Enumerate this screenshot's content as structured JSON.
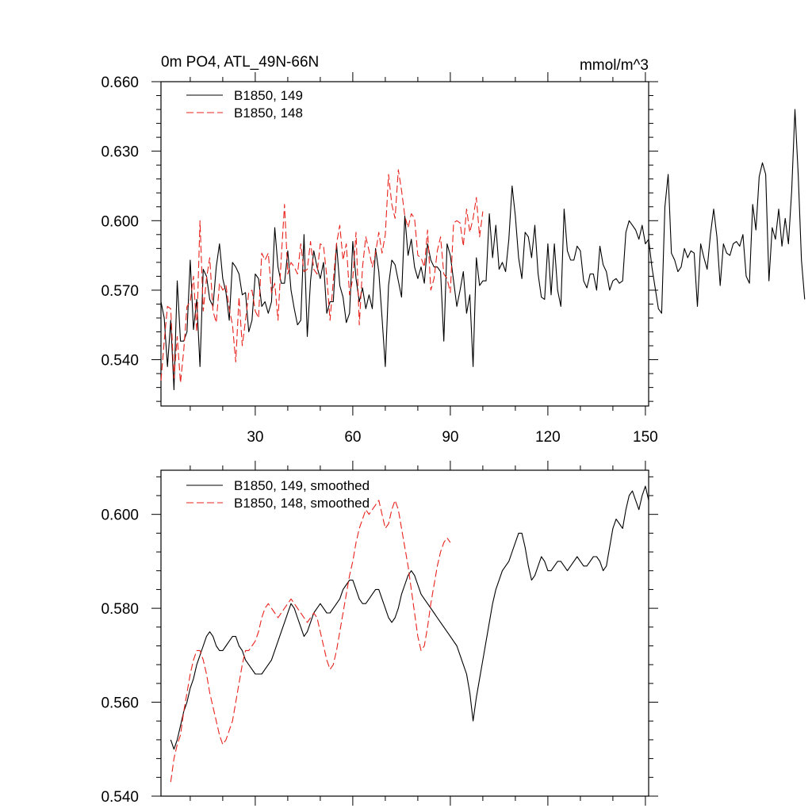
{
  "chart_data": [
    {
      "type": "line",
      "title": "0m PO4, ATL_49N-66N",
      "units": "mmol/m^3",
      "xlabel": "",
      "ylabel": "",
      "xlim": [
        1,
        151
      ],
      "ylim": [
        0.52,
        0.66
      ],
      "xticks": [
        30,
        60,
        90,
        120,
        150
      ],
      "yticks": [
        0.54,
        0.57,
        0.6,
        0.63,
        0.66
      ],
      "ytick_labels": [
        "0.540",
        "0.570",
        "0.600",
        "0.630",
        "0.660"
      ],
      "xtick_labels": [
        "30",
        "60",
        "90",
        "120",
        "150"
      ],
      "legend_position": "top-left",
      "series": [
        {
          "name": "B1850, 149",
          "color": "#000000",
          "dash": "solid",
          "x_start": 1,
          "values": [
            0.565,
            0.558,
            0.537,
            0.557,
            0.527,
            0.574,
            0.548,
            0.548,
            0.552,
            0.583,
            0.553,
            0.566,
            0.537,
            0.579,
            0.576,
            0.566,
            0.563,
            0.58,
            0.59,
            0.575,
            0.569,
            0.557,
            0.582,
            0.58,
            0.577,
            0.568,
            0.569,
            0.552,
            0.557,
            0.577,
            0.575,
            0.563,
            0.565,
            0.56,
            0.565,
            0.597,
            0.58,
            0.573,
            0.573,
            0.587,
            0.57,
            0.562,
            0.555,
            0.557,
            0.594,
            0.55,
            0.574,
            0.587,
            0.58,
            0.575,
            0.582,
            0.56,
            0.565,
            0.565,
            0.59,
            0.572,
            0.567,
            0.556,
            0.56,
            0.591,
            0.575,
            0.565,
            0.571,
            0.562,
            0.568,
            0.562,
            0.588,
            0.578,
            0.558,
            0.537,
            0.572,
            0.583,
            0.581,
            0.574,
            0.567,
            0.602,
            0.585,
            0.592,
            0.58,
            0.575,
            0.58,
            0.573,
            0.59,
            0.583,
            0.58,
            0.58,
            0.578,
            0.548,
            0.59,
            0.585,
            0.574,
            0.563,
            0.57,
            0.578,
            0.56,
            0.568,
            0.537,
            0.584,
            0.572,
            0.574,
            0.574,
            0.603,
            0.584,
            0.598,
            0.579,
            0.582,
            0.578,
            0.592,
            0.615,
            0.602,
            0.584,
            0.575,
            0.595,
            0.593,
            0.584,
            0.598,
            0.577,
            0.567,
            0.566,
            0.59,
            0.568,
            0.59,
            0.57,
            0.563,
            0.605,
            0.587,
            0.583,
            0.583,
            0.589,
            0.587,
            0.574,
            0.571,
            0.577,
            0.577,
            0.57,
            0.589,
            0.581,
            0.578,
            0.57,
            0.574,
            0.575,
            0.573,
            0.574,
            0.595,
            0.6,
            0.598,
            0.596,
            0.592,
            0.598,
            0.59,
            0.592,
            0.58,
            0.571,
            0.562,
            0.56,
            0.606,
            0.62,
            0.586,
            0.583,
            0.578,
            0.58,
            0.588,
            0.584,
            0.587,
            0.586,
            0.563,
            0.59,
            0.584,
            0.579,
            0.594,
            0.605,
            0.593,
            0.572,
            0.59,
            0.586,
            0.585,
            0.59,
            0.591,
            0.589,
            0.594,
            0.576,
            0.573,
            0.607,
            0.596,
            0.619,
            0.625,
            0.62,
            0.574,
            0.597,
            0.592,
            0.605,
            0.589,
            0.601,
            0.59,
            0.613,
            0.648,
            0.62,
            0.583,
            0.566
          ]
        },
        {
          "name": "B1850, 148",
          "color": "#e8221c",
          "dash": "dashed",
          "x_start": 1,
          "values": [
            0.531,
            0.548,
            0.563,
            0.562,
            0.532,
            0.55,
            0.53,
            0.544,
            0.563,
            0.565,
            0.576,
            0.552,
            0.6,
            0.561,
            0.575,
            0.584,
            0.561,
            0.556,
            0.573,
            0.57,
            0.572,
            0.562,
            0.555,
            0.539,
            0.567,
            0.546,
            0.557,
            0.569,
            0.57,
            0.561,
            0.558,
            0.586,
            0.583,
            0.586,
            0.569,
            0.573,
            0.557,
            0.584,
            0.607,
            0.577,
            0.582,
            0.58,
            0.577,
            0.59,
            0.578,
            0.579,
            0.591,
            0.579,
            0.577,
            0.59,
            0.589,
            0.576,
            0.557,
            0.574,
            0.59,
            0.598,
            0.583,
            0.59,
            0.568,
            0.575,
            0.595,
            0.555,
            0.58,
            0.593,
            0.587,
            0.58,
            0.586,
            0.595,
            0.586,
            0.594,
            0.62,
            0.607,
            0.601,
            0.622,
            0.613,
            0.602,
            0.597,
            0.603,
            0.601,
            0.585,
            0.584,
            0.58,
            0.596,
            0.57,
            0.575,
            0.587,
            0.593,
            0.577,
            0.575,
            0.569,
            0.599,
            0.6,
            0.599,
            0.589,
            0.605,
            0.595,
            0.601,
            0.61,
            0.593,
            0.604
          ]
        }
      ]
    },
    {
      "type": "line",
      "title": "",
      "xlabel": "",
      "ylabel": "",
      "xlim": [
        1,
        151
      ],
      "ylim": [
        0.54,
        0.6094
      ],
      "xticks": [
        30,
        60,
        90,
        120,
        150
      ],
      "yticks": [
        0.54,
        0.56,
        0.58,
        0.6
      ],
      "ytick_labels": [
        "0.540",
        "0.560",
        "0.580",
        "0.600"
      ],
      "legend_position": "top-left",
      "series": [
        {
          "name": "B1850, 149, smoothed",
          "color": "#000000",
          "dash": "solid",
          "x_start": 4,
          "values": [
            0.552,
            0.55,
            0.552,
            0.555,
            0.558,
            0.56,
            0.563,
            0.565,
            0.568,
            0.57,
            0.572,
            0.574,
            0.575,
            0.574,
            0.572,
            0.571,
            0.571,
            0.572,
            0.573,
            0.574,
            0.574,
            0.572,
            0.571,
            0.569,
            0.568,
            0.567,
            0.566,
            0.566,
            0.566,
            0.567,
            0.568,
            0.569,
            0.571,
            0.573,
            0.575,
            0.577,
            0.579,
            0.581,
            0.58,
            0.578,
            0.576,
            0.574,
            0.575,
            0.577,
            0.579,
            0.58,
            0.581,
            0.58,
            0.579,
            0.579,
            0.58,
            0.581,
            0.582,
            0.584,
            0.585,
            0.586,
            0.586,
            0.584,
            0.582,
            0.581,
            0.581,
            0.582,
            0.583,
            0.584,
            0.584,
            0.582,
            0.58,
            0.578,
            0.577,
            0.578,
            0.58,
            0.583,
            0.585,
            0.587,
            0.588,
            0.587,
            0.585,
            0.583,
            0.582,
            0.581,
            0.58,
            0.579,
            0.578,
            0.577,
            0.576,
            0.575,
            0.574,
            0.573,
            0.572,
            0.57,
            0.568,
            0.566,
            0.562,
            0.556,
            0.561,
            0.565,
            0.569,
            0.573,
            0.577,
            0.581,
            0.584,
            0.586,
            0.588,
            0.589,
            0.59,
            0.592,
            0.594,
            0.596,
            0.596,
            0.593,
            0.589,
            0.586,
            0.587,
            0.589,
            0.591,
            0.59,
            0.588,
            0.588,
            0.589,
            0.59,
            0.59,
            0.589,
            0.588,
            0.589,
            0.59,
            0.591,
            0.59,
            0.589,
            0.589,
            0.59,
            0.591,
            0.591,
            0.59,
            0.588,
            0.589,
            0.593,
            0.597,
            0.599,
            0.598,
            0.597,
            0.601,
            0.604,
            0.605,
            0.603,
            0.601,
            0.604,
            0.606,
            0.603
          ]
        },
        {
          "name": "B1850, 148, smoothed",
          "color": "#e8221c",
          "dash": "dashed",
          "x_start": 4,
          "values": [
            0.543,
            0.548,
            0.551,
            0.553,
            0.558,
            0.562,
            0.566,
            0.569,
            0.571,
            0.571,
            0.569,
            0.566,
            0.562,
            0.559,
            0.556,
            0.553,
            0.551,
            0.552,
            0.554,
            0.556,
            0.56,
            0.564,
            0.568,
            0.571,
            0.571,
            0.572,
            0.573,
            0.575,
            0.578,
            0.58,
            0.581,
            0.58,
            0.579,
            0.578,
            0.579,
            0.58,
            0.581,
            0.582,
            0.581,
            0.58,
            0.579,
            0.578,
            0.577,
            0.578,
            0.579,
            0.578,
            0.575,
            0.572,
            0.569,
            0.567,
            0.568,
            0.571,
            0.575,
            0.579,
            0.583,
            0.587,
            0.59,
            0.594,
            0.597,
            0.599,
            0.601,
            0.6,
            0.601,
            0.602,
            0.603,
            0.6,
            0.597,
            0.598,
            0.601,
            0.603,
            0.601,
            0.597,
            0.593,
            0.589,
            0.584,
            0.579,
            0.574,
            0.571,
            0.572,
            0.576,
            0.581,
            0.585,
            0.589,
            0.592,
            0.594,
            0.595,
            0.594
          ]
        }
      ]
    }
  ]
}
